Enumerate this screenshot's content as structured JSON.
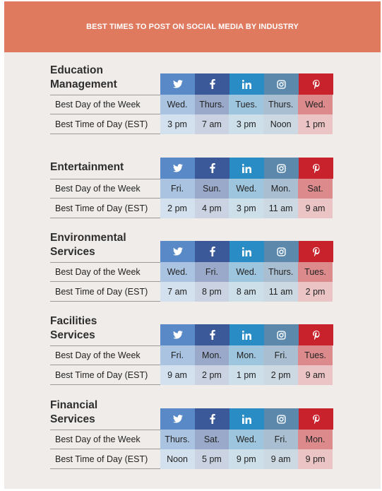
{
  "title": "BEST TIMES TO POST ON SOCIAL MEDIA BY INDUSTRY",
  "icons": [
    "twitter-icon",
    "facebook-icon",
    "linkedin-icon",
    "instagram-icon",
    "pinterest-icon"
  ],
  "colors": {
    "banner": "#e07a5f",
    "twitter": "#5a89c8",
    "facebook": "#3b5998",
    "linkedin": "#2a8cc4",
    "instagram": "#5b88ab",
    "pinterest": "#c8232c"
  },
  "row_labels": {
    "day": "Best Day of the Week",
    "time": "Best Time of Day (EST)"
  },
  "industries": [
    {
      "name_lines": [
        "Education",
        "Management"
      ],
      "days": [
        "Wed.",
        "Thurs.",
        "Tues.",
        "Thurs.",
        "Wed."
      ],
      "times": [
        "3 pm",
        "7 am",
        "3 pm",
        "Noon",
        "1 pm"
      ]
    },
    {
      "name_lines": [
        "Entertainment"
      ],
      "days": [
        "Fri.",
        "Sun.",
        "Wed.",
        "Mon.",
        "Sat."
      ],
      "times": [
        "2 pm",
        "4 pm",
        "3 pm",
        "11 am",
        "9 am"
      ]
    },
    {
      "name_lines": [
        "Environmental",
        "Services"
      ],
      "days": [
        "Wed.",
        "Fri.",
        "Wed.",
        "Thurs.",
        "Tues."
      ],
      "times": [
        "7 am",
        "8 pm",
        "8 am",
        "11 am",
        "2 pm"
      ]
    },
    {
      "name_lines": [
        "Facilities",
        "Services"
      ],
      "days": [
        "Fri.",
        "Mon.",
        "Mon.",
        "Fri.",
        "Tues."
      ],
      "times": [
        "9 am",
        "2 pm",
        "1 pm",
        "2 pm",
        "9 am"
      ]
    },
    {
      "name_lines": [
        "Financial",
        "Services"
      ],
      "days": [
        "Thurs.",
        "Sat.",
        "Wed.",
        "Fri.",
        "Mon."
      ],
      "times": [
        "Noon",
        "5 pm",
        "9 pm",
        "9 am",
        "9 pm"
      ]
    }
  ]
}
